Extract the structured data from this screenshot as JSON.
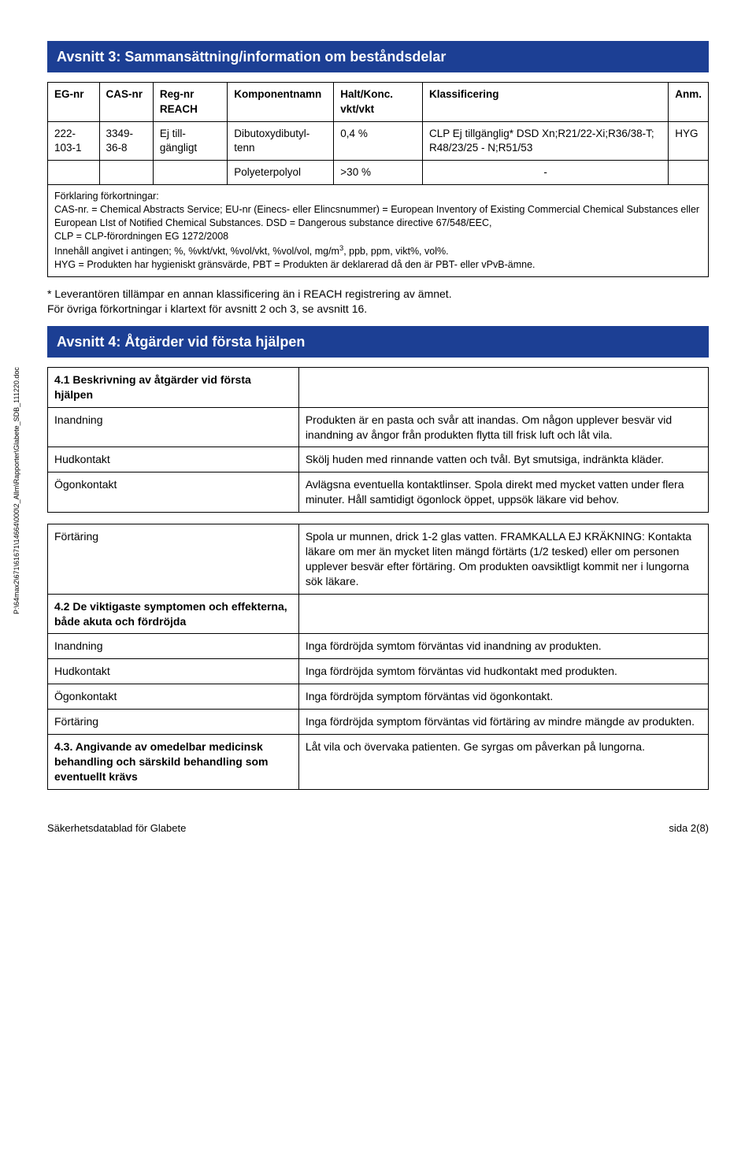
{
  "section3": {
    "title": "Avsnitt 3: Sammansättning/information om beståndsdelar",
    "headers": {
      "eg": "EG-nr",
      "cas": "CAS-nr",
      "reg": "Reg-nr REACH",
      "komp": "Komponentnamn",
      "halt": "Halt/Konc. vkt/vkt",
      "klass": "Klassificering",
      "anm": "Anm."
    },
    "row1": {
      "eg": "222-103-1",
      "cas": "3349-36-8",
      "reg": "Ej till-gängligt",
      "komp": "Dibutoxydibutyl-tenn",
      "halt": "0,4 %",
      "klass": "CLP Ej tillgänglig* DSD Xn;R21/22-Xi;R36/38-T; R48/23/25 - N;R51/53",
      "anm": "HYG"
    },
    "row2": {
      "komp": "Polyeterpolyol",
      "halt": ">30 %",
      "klass": "-"
    },
    "footnote_l1": "Förklaring förkortningar:",
    "footnote_l2": "CAS-nr. = Chemical Abstracts Service; EU-nr (Einecs- eller Elincsnummer) = European Inventory of Existing Commercial Chemical Substances eller European LIst of Notified Chemical Substances. DSD = Dangerous substance directive 67/548/EEC,",
    "footnote_l3": "CLP = CLP-förordningen EG 1272/2008",
    "footnote_l4a": "Innehåll angivet i antingen; %, %vkt/vkt, %vol/vkt, %vol/vol, mg/m",
    "footnote_l4b": ", ppb, ppm, vikt%, vol%.",
    "footnote_l5": "HYG = Produkten har hygieniskt gränsvärde, PBT = Produkten är deklarerad då den är PBT- eller vPvB-ämne."
  },
  "para1": "* Leverantören tillämpar en annan klassificering än i REACH registrering av ämnet.",
  "para2": "För övriga förkortningar i klartext för avsnitt 2 och 3, se avsnitt 16.",
  "section4": {
    "title": "Avsnitt 4: Åtgärder vid första hjälpen",
    "s41": {
      "heading": "4.1 Beskrivning av åtgärder vid första hjälpen",
      "inandning_l": "Inandning",
      "inandning_v": "Produkten är en pasta och svår att inandas. Om någon upplever besvär vid inandning av ångor från produkten flytta till frisk luft och låt vila.",
      "hud_l": "Hudkontakt",
      "hud_v": "Skölj huden med rinnande vatten och tvål. Byt smutsiga, indränkta kläder.",
      "ogon_l": "Ögonkontakt",
      "ogon_v": "Avlägsna eventuella kontaktlinser. Spola direkt med mycket vatten under flera minuter. Håll samtidigt ögonlock öppet, uppsök läkare vid behov."
    },
    "fortaring": {
      "label": "Förtäring",
      "value": "Spola ur munnen, drick 1-2 glas vatten. FRAMKALLA EJ KRÄKNING: Kontakta läkare om mer än mycket liten mängd förtärts (1/2 tesked) eller om personen upplever besvär efter förtäring. Om produkten oavsiktligt kommit ner i lungorna sök läkare."
    },
    "s42": {
      "heading": "4.2 De viktigaste symptomen och effekterna, både akuta och fördröjda",
      "inandning_l": "Inandning",
      "inandning_v": "Inga fördröjda symtom förväntas vid inandning av produkten.",
      "hud_l": "Hudkontakt",
      "hud_v": "Inga fördröjda symtom förväntas vid hudkontakt med produkten.",
      "ogon_l": "Ögonkontakt",
      "ogon_v": "Inga fördröjda symptom förväntas vid ögonkontakt.",
      "fort_l": "Förtäring",
      "fort_v": "Inga fördröjda symptom förväntas vid förtäring av mindre mängde av produkten."
    },
    "s43": {
      "heading": "4.3. Angivande av omedelbar medicinsk behandling och särskild behandling som eventuellt krävs",
      "value": "Låt vila och övervaka patienten. Ge syrgas om påverkan på lungorna."
    }
  },
  "side_path": "P:\\64max2\\671\\61671\\14664\\000\\2_Allm\\Rapporter\\Glabete_SDB_111220.doc",
  "footer_left": "Säkerhetsdatablad för Glabete",
  "footer_right": "sida 2(8)"
}
